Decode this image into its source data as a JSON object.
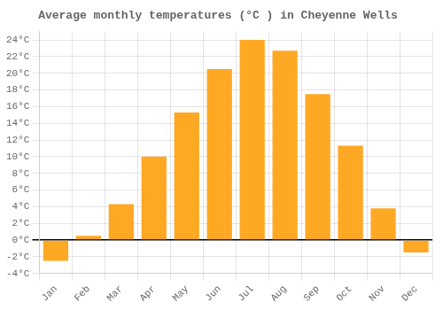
{
  "chart_data": {
    "type": "bar",
    "title": "Average monthly temperatures (°C ) in Cheyenne Wells",
    "categories": [
      "Jan",
      "Feb",
      "Mar",
      "Apr",
      "May",
      "Jun",
      "Jul",
      "Aug",
      "Sep",
      "Oct",
      "Nov",
      "Dec"
    ],
    "values": [
      -2.5,
      0.5,
      4.3,
      10.0,
      15.3,
      20.5,
      24.0,
      22.7,
      17.5,
      11.3,
      3.8,
      -1.5
    ],
    "color": "#FFA824",
    "ylim": [
      -4,
      25
    ],
    "yticks": [
      {
        "value": -4,
        "label": "-4°C"
      },
      {
        "value": -2,
        "label": "-2°C"
      },
      {
        "value": 0,
        "label": "0°C"
      },
      {
        "value": 2,
        "label": "2°C"
      },
      {
        "value": 4,
        "label": "4°C"
      },
      {
        "value": 6,
        "label": "6°C"
      },
      {
        "value": 8,
        "label": "8°C"
      },
      {
        "value": 10,
        "label": "10°C"
      },
      {
        "value": 12,
        "label": "12°C"
      },
      {
        "value": 14,
        "label": "14°C"
      },
      {
        "value": 16,
        "label": "16°C"
      },
      {
        "value": 18,
        "label": "18°C"
      },
      {
        "value": 20,
        "label": "20°C"
      },
      {
        "value": 22,
        "label": "22°C"
      },
      {
        "value": 24,
        "label": "24°C"
      }
    ],
    "grid": true
  }
}
